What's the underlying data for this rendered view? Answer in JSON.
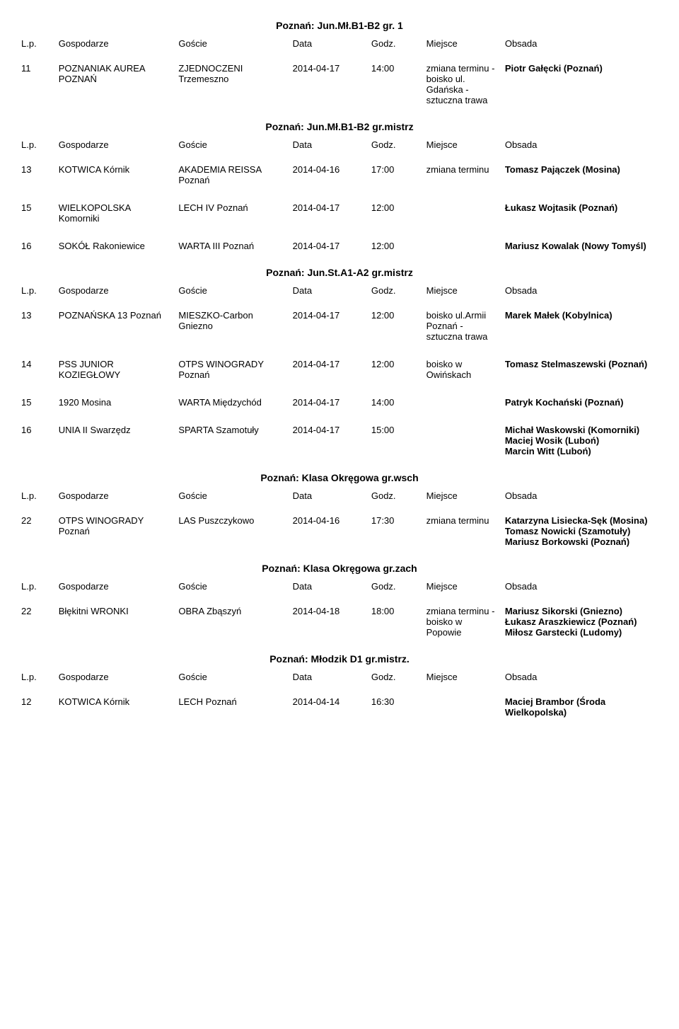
{
  "headers": {
    "lp": "L.p.",
    "hosts": "Gospodarze",
    "guests": "Goście",
    "date": "Data",
    "time": "Godz.",
    "place": "Miejsce",
    "obs": "Obsada"
  },
  "sections": [
    {
      "title": "Poznań: Jun.Mł.B1-B2 gr. 1",
      "rows": [
        {
          "lp": "11",
          "hosts": "POZNANIAK AUREA POZNAŃ",
          "guests": "ZJEDNOCZENI Trzemeszno",
          "date": "2014-04-17",
          "time": "14:00",
          "place": "zmiana terminu - boisko ul. Gdańska - sztuczna trawa",
          "obs": "Piotr Gałęcki (Poznań)"
        }
      ]
    },
    {
      "title": "Poznań: Jun.Mł.B1-B2 gr.mistrz",
      "rows": [
        {
          "lp": "13",
          "hosts": "KOTWICA Kórnik",
          "guests": "AKADEMIA REISSA Poznań",
          "date": "2014-04-16",
          "time": "17:00",
          "place": "zmiana terminu",
          "obs": "Tomasz Pajączek (Mosina)"
        },
        {
          "lp": "15",
          "hosts": "WIELKOPOLSKA Komorniki",
          "guests": "LECH IV Poznań",
          "date": "2014-04-17",
          "time": "12:00",
          "place": "",
          "obs": "Łukasz Wojtasik (Poznań)"
        },
        {
          "lp": "16",
          "hosts": "SOKÓŁ Rakoniewice",
          "guests": "WARTA III Poznań",
          "date": "2014-04-17",
          "time": "12:00",
          "place": "",
          "obs": "Mariusz Kowalak (Nowy Tomyśl)"
        }
      ]
    },
    {
      "title": "Poznań: Jun.St.A1-A2 gr.mistrz",
      "rows": [
        {
          "lp": "13",
          "hosts": "POZNAŃSKA 13 Poznań",
          "guests": "MIESZKO-Carbon Gniezno",
          "date": "2014-04-17",
          "time": "12:00",
          "place": "boisko ul.Armii Poznań - sztuczna trawa",
          "obs": "Marek Małek (Kobylnica)"
        },
        {
          "lp": "14",
          "hosts": "PSS JUNIOR KOZIEGŁOWY",
          "guests": "OTPS WINOGRADY Poznań",
          "date": "2014-04-17",
          "time": "12:00",
          "place": "boisko w Owińskach",
          "obs": "Tomasz Stelmaszewski (Poznań)"
        },
        {
          "lp": "15",
          "hosts": "1920 Mosina",
          "guests": "WARTA Międzychód",
          "date": "2014-04-17",
          "time": "14:00",
          "place": "",
          "obs": "Patryk Kochański (Poznań)"
        },
        {
          "lp": "16",
          "hosts": "UNIA II Swarzędz",
          "guests": "SPARTA Szamotuły",
          "date": "2014-04-17",
          "time": "15:00",
          "place": "",
          "obs": "Michał Waskowski (Komorniki)\nMaciej Wosik (Luboń)\nMarcin Witt (Luboń)"
        }
      ]
    },
    {
      "title": "Poznań: Klasa Okręgowa gr.wsch",
      "rows": [
        {
          "lp": "22",
          "hosts": "OTPS WINOGRADY Poznań",
          "guests": "LAS Puszczykowo",
          "date": "2014-04-16",
          "time": "17:30",
          "place": "zmiana terminu",
          "obs": "Katarzyna Lisiecka-Sęk (Mosina)\nTomasz Nowicki (Szamotuły)\nMariusz Borkowski (Poznań)"
        }
      ]
    },
    {
      "title": "Poznań: Klasa Okręgowa gr.zach",
      "rows": [
        {
          "lp": "22",
          "hosts": "Błękitni WRONKI",
          "guests": "OBRA Zbąszyń",
          "date": "2014-04-18",
          "time": "18:00",
          "place": "zmiana terminu - boisko w Popowie",
          "obs": "Mariusz Sikorski (Gniezno)\nŁukasz Araszkiewicz (Poznań)\nMiłosz Garstecki (Ludomy)"
        }
      ]
    },
    {
      "title": "Poznań: Młodzik D1 gr.mistrz.",
      "rows": [
        {
          "lp": "12",
          "hosts": "KOTWICA Kórnik",
          "guests": "LECH Poznań",
          "date": "2014-04-14",
          "time": "16:30",
          "place": "",
          "obs": "Maciej Brambor (Środa Wielkopolska)"
        }
      ]
    }
  ]
}
